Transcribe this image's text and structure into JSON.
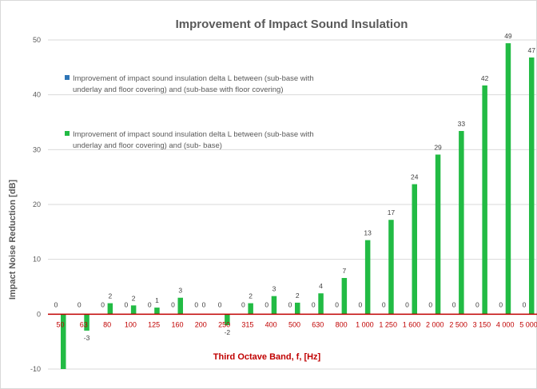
{
  "chart_data": {
    "type": "bar",
    "title": "Improvement of Impact Sound Insulation",
    "xlabel": "Third Octave Band, f, [Hz]",
    "ylabel": "Impact Noise Reduction [dB]",
    "ylim": [
      -10,
      50
    ],
    "yticks": [
      -10,
      0,
      10,
      20,
      30,
      40,
      50
    ],
    "grid": true,
    "legend_position": "top-left",
    "categories": [
      "50",
      "63",
      "80",
      "100",
      "125",
      "160",
      "200",
      "250",
      "315",
      "400",
      "500",
      "630",
      "800",
      "1 000",
      "1 250",
      "1 600",
      "2 000",
      "2 500",
      "3 150",
      "4 000",
      "5 000"
    ],
    "series": [
      {
        "name": "Improvement of impact sound insulation delta L between (sub-base with underlay and floor covering) and (sub-base with floor covering)",
        "color": "#2e75b6",
        "values": [
          0,
          0,
          0,
          0,
          0,
          0,
          0,
          0,
          0,
          0,
          0,
          0,
          0,
          0,
          0,
          0,
          0,
          0,
          0,
          0,
          0
        ],
        "labels": [
          "0",
          "0",
          "0",
          "0",
          "0",
          "0",
          "0",
          "0",
          "0",
          "0",
          "0",
          "0",
          "0",
          "0",
          "0",
          "0",
          "0",
          "0",
          "0",
          "0",
          "0"
        ]
      },
      {
        "name": "Improvement of impact sound insulation delta L between (sub-base with underlay and floor covering) and (sub- base)",
        "color": "#22bb44",
        "values": [
          -10,
          -3,
          2,
          1.6,
          1.2,
          3,
          0,
          -2,
          2,
          3.3,
          2.1,
          3.8,
          6.6,
          13.5,
          17.2,
          23.7,
          29.1,
          33.4,
          41.7,
          49.4,
          46.8
        ],
        "labels": [
          "",
          "-3",
          "2",
          "2",
          "1",
          "3",
          "0",
          "-2",
          "2",
          "3",
          "2",
          "4",
          "7",
          "13",
          "17",
          "24",
          "29",
          "33",
          "42",
          "49",
          "47"
        ]
      }
    ]
  },
  "legend": {
    "series1_line1": "Improvement of impact sound insulation delta L between (sub-base with",
    "series1_line2": "underlay and floor covering) and (sub-base with floor covering)",
    "series2_line1": "Improvement of impact sound insulation delta L between (sub-base with",
    "series2_line2": "underlay and floor covering) and (sub- base)"
  }
}
